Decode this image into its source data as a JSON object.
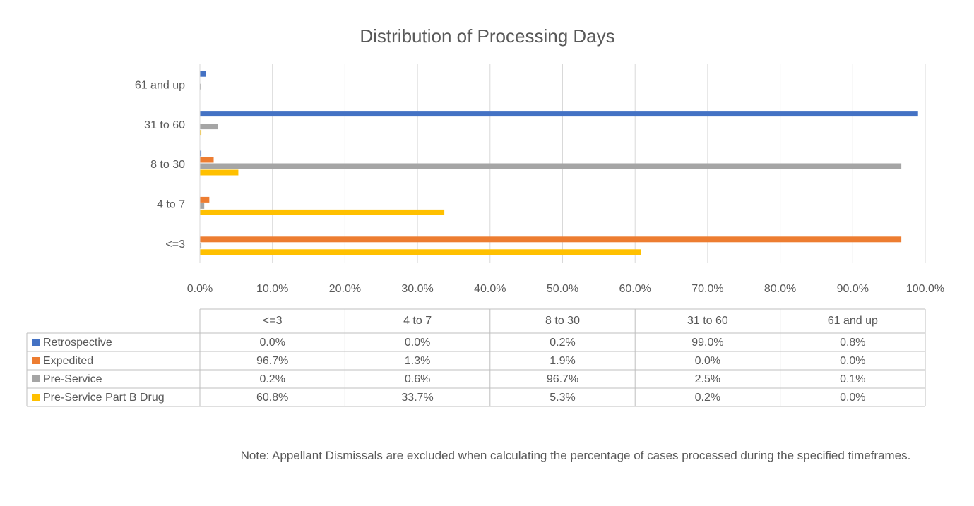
{
  "chart_data": {
    "type": "bar",
    "orientation": "horizontal",
    "title": "Distribution of Processing Days",
    "categories": [
      "<=3",
      "4 to 7",
      "8 to 30",
      "31 to 60",
      "61 and up"
    ],
    "series": [
      {
        "name": "Retrospective",
        "color": "#4472c4",
        "values": [
          0.0,
          0.0,
          0.2,
          99.0,
          0.8
        ],
        "value_labels": [
          "0.0%",
          "0.0%",
          "0.2%",
          "99.0%",
          "0.8%"
        ]
      },
      {
        "name": "Expedited",
        "color": "#ed7d31",
        "values": [
          96.7,
          1.3,
          1.9,
          0.0,
          0.0
        ],
        "value_labels": [
          "96.7%",
          "1.3%",
          "1.9%",
          "0.0%",
          "0.0%"
        ]
      },
      {
        "name": "Pre-Service",
        "color": "#a5a5a5",
        "values": [
          0.2,
          0.6,
          96.7,
          2.5,
          0.1
        ],
        "value_labels": [
          "0.2%",
          "0.6%",
          "96.7%",
          "2.5%",
          "0.1%"
        ]
      },
      {
        "name": "Pre-Service Part B Drug",
        "color": "#ffc000",
        "values": [
          60.8,
          33.7,
          5.3,
          0.2,
          0.0
        ],
        "value_labels": [
          "60.8%",
          "33.7%",
          "5.3%",
          "0.2%",
          "0.0%"
        ]
      }
    ],
    "xlim": [
      0,
      100
    ],
    "xticks": [
      {
        "value": 0,
        "label": "0.0%"
      },
      {
        "value": 10,
        "label": "10.0%"
      },
      {
        "value": 20,
        "label": "20.0%"
      },
      {
        "value": 30,
        "label": "30.0%"
      },
      {
        "value": 40,
        "label": "40.0%"
      },
      {
        "value": 50,
        "label": "50.0%"
      },
      {
        "value": 60,
        "label": "60.0%"
      },
      {
        "value": 70,
        "label": "70.0%"
      },
      {
        "value": 80,
        "label": "80.0%"
      },
      {
        "value": 90,
        "label": "90.0%"
      },
      {
        "value": 100,
        "label": "100.0%"
      }
    ],
    "grid": true,
    "data_table": true,
    "note": "Note: Appellant Dismissals are excluded when calculating the percentage of cases processed during the specified timeframes."
  }
}
